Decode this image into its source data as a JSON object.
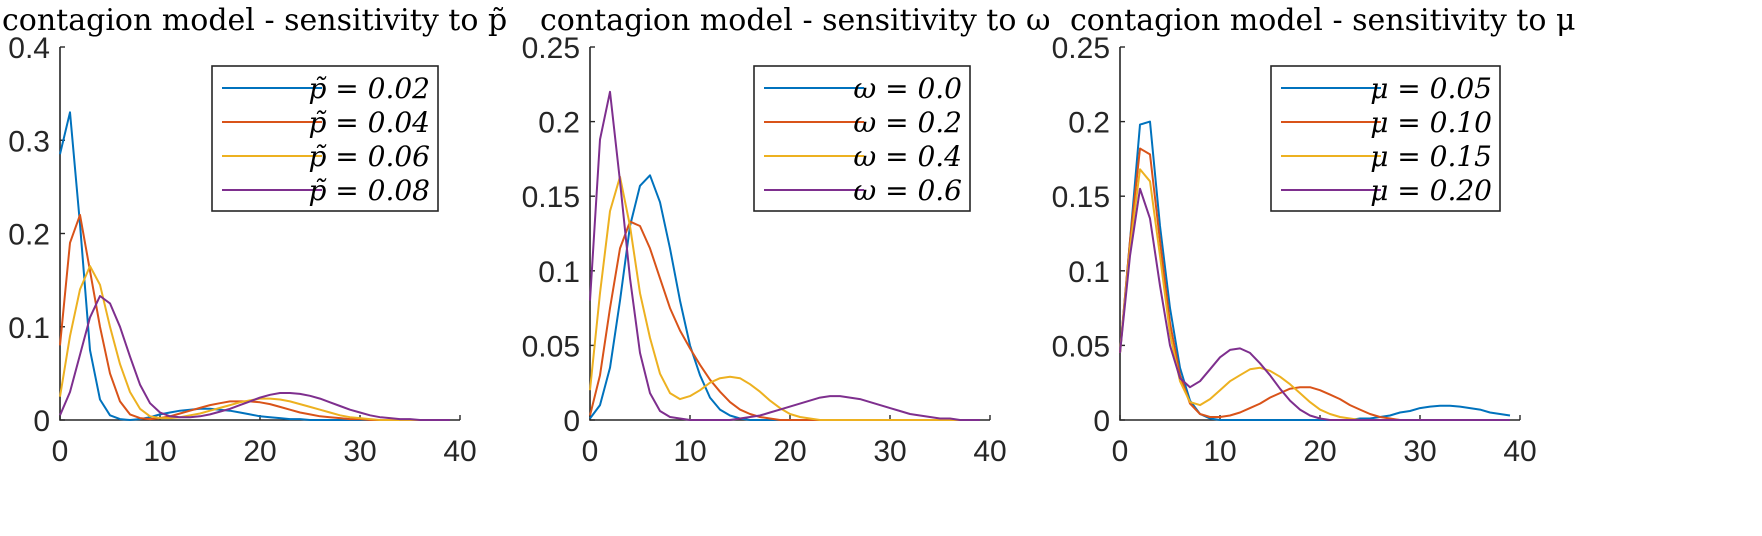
{
  "colors": {
    "blue": "#0072BD",
    "orange": "#D95319",
    "yellow": "#EDB120",
    "purple": "#7E2F8E"
  },
  "chart_data": [
    {
      "type": "line",
      "title": "contagion model - sensitivity to p̃",
      "xlim": [
        0,
        40
      ],
      "ylim": [
        0,
        0.4
      ],
      "xticks": [
        0,
        10,
        20,
        30,
        40
      ],
      "yticks": [
        0,
        0.1,
        0.2,
        0.3,
        0.4
      ],
      "xtick_labels": [
        "0",
        "10",
        "20",
        "30",
        "40"
      ],
      "ytick_labels": [
        "0",
        "0.1",
        "0.2",
        "0.3",
        "0.4"
      ],
      "legend": "top-right",
      "series": [
        {
          "name": "p̃ = 0.02",
          "color": "#0072BD",
          "x": [
            0,
            1,
            2,
            3,
            4,
            5,
            6,
            7,
            8,
            9,
            10,
            11,
            12,
            13,
            14,
            15,
            16,
            17,
            18,
            19,
            20,
            21,
            22,
            23,
            24,
            25,
            26,
            27,
            28,
            29,
            30,
            31,
            32,
            33,
            34,
            35,
            36,
            37,
            38,
            39
          ],
          "y": [
            0.285,
            0.33,
            0.21,
            0.075,
            0.022,
            0.005,
            0.001,
            0,
            0.001,
            0.003,
            0.006,
            0.008,
            0.01,
            0.011,
            0.012,
            0.012,
            0.011,
            0.01,
            0.008,
            0.006,
            0.004,
            0.003,
            0.002,
            0.001,
            0.001,
            0,
            0,
            0,
            0,
            0,
            0,
            0,
            0,
            0,
            0,
            0,
            0,
            0,
            0,
            0
          ]
        },
        {
          "name": "p̃ = 0.04",
          "color": "#D95319",
          "x": [
            0,
            1,
            2,
            3,
            4,
            5,
            6,
            7,
            8,
            9,
            10,
            11,
            12,
            13,
            14,
            15,
            16,
            17,
            18,
            19,
            20,
            21,
            22,
            23,
            24,
            25,
            26,
            27,
            28,
            29,
            30,
            31,
            32,
            33,
            34,
            35,
            36,
            37,
            38,
            39
          ],
          "y": [
            0.08,
            0.19,
            0.22,
            0.16,
            0.1,
            0.05,
            0.02,
            0.006,
            0.002,
            0.001,
            0.002,
            0.004,
            0.007,
            0.01,
            0.013,
            0.016,
            0.018,
            0.02,
            0.02,
            0.02,
            0.019,
            0.017,
            0.014,
            0.011,
            0.008,
            0.006,
            0.004,
            0.003,
            0.002,
            0.001,
            0.001,
            0,
            0,
            0,
            0,
            0,
            0,
            0,
            0,
            0
          ]
        },
        {
          "name": "p̃ = 0.06",
          "color": "#EDB120",
          "x": [
            0,
            1,
            2,
            3,
            4,
            5,
            6,
            7,
            8,
            9,
            10,
            11,
            12,
            13,
            14,
            15,
            16,
            17,
            18,
            19,
            20,
            21,
            22,
            23,
            24,
            25,
            26,
            27,
            28,
            29,
            30,
            31,
            32,
            33,
            34,
            35,
            36,
            37,
            38,
            39
          ],
          "y": [
            0.025,
            0.09,
            0.14,
            0.165,
            0.145,
            0.1,
            0.06,
            0.03,
            0.012,
            0.004,
            0.002,
            0.002,
            0.003,
            0.005,
            0.007,
            0.01,
            0.013,
            0.016,
            0.019,
            0.021,
            0.023,
            0.023,
            0.022,
            0.02,
            0.017,
            0.014,
            0.011,
            0.008,
            0.005,
            0.003,
            0.002,
            0.001,
            0,
            0,
            0,
            0,
            0,
            0,
            0,
            0
          ]
        },
        {
          "name": "p̃ = 0.08",
          "color": "#7E2F8E",
          "x": [
            0,
            1,
            2,
            3,
            4,
            5,
            6,
            7,
            8,
            9,
            10,
            11,
            12,
            13,
            14,
            15,
            16,
            17,
            18,
            19,
            20,
            21,
            22,
            23,
            24,
            25,
            26,
            27,
            28,
            29,
            30,
            31,
            32,
            33,
            34,
            35,
            36,
            37,
            38,
            39
          ],
          "y": [
            0.005,
            0.03,
            0.07,
            0.11,
            0.133,
            0.125,
            0.1,
            0.068,
            0.038,
            0.018,
            0.008,
            0.004,
            0.003,
            0.003,
            0.004,
            0.006,
            0.009,
            0.012,
            0.016,
            0.02,
            0.024,
            0.027,
            0.029,
            0.029,
            0.028,
            0.026,
            0.023,
            0.019,
            0.015,
            0.011,
            0.008,
            0.005,
            0.003,
            0.002,
            0.001,
            0.001,
            0,
            0,
            0,
            0
          ]
        }
      ]
    },
    {
      "type": "line",
      "title": "contagion model - sensitivity to ω",
      "xlim": [
        0,
        40
      ],
      "ylim": [
        0,
        0.25
      ],
      "xticks": [
        0,
        10,
        20,
        30,
        40
      ],
      "yticks": [
        0,
        0.05,
        0.1,
        0.15,
        0.2,
        0.25
      ],
      "xtick_labels": [
        "0",
        "10",
        "20",
        "30",
        "40"
      ],
      "ytick_labels": [
        "0",
        "0.05",
        "0.1",
        "0.15",
        "0.2",
        "0.25"
      ],
      "legend": "top-right",
      "series": [
        {
          "name": "ω = 0.0",
          "color": "#0072BD",
          "x": [
            0,
            1,
            2,
            3,
            4,
            5,
            6,
            7,
            8,
            9,
            10,
            11,
            12,
            13,
            14,
            15,
            16,
            17,
            18,
            19,
            20,
            21,
            22,
            23,
            24,
            25,
            26,
            27,
            28,
            29,
            30,
            31,
            32,
            33,
            34,
            35,
            36,
            37,
            38,
            39
          ],
          "y": [
            0.001,
            0.01,
            0.035,
            0.08,
            0.13,
            0.157,
            0.164,
            0.146,
            0.115,
            0.08,
            0.05,
            0.03,
            0.015,
            0.007,
            0.003,
            0.001,
            0,
            0,
            0,
            0,
            0,
            0,
            0,
            0,
            0,
            0,
            0,
            0,
            0,
            0,
            0,
            0,
            0,
            0,
            0,
            0,
            0,
            0,
            0,
            0
          ]
        },
        {
          "name": "ω = 0.2",
          "color": "#D95319",
          "x": [
            0,
            1,
            2,
            3,
            4,
            5,
            6,
            7,
            8,
            9,
            10,
            11,
            12,
            13,
            14,
            15,
            16,
            17,
            18,
            19,
            20,
            21,
            22,
            23,
            24,
            25,
            26,
            27,
            28,
            29,
            30,
            31,
            32,
            33,
            34,
            35,
            36,
            37,
            38,
            39
          ],
          "y": [
            0.003,
            0.03,
            0.075,
            0.115,
            0.133,
            0.13,
            0.115,
            0.095,
            0.075,
            0.06,
            0.048,
            0.037,
            0.027,
            0.019,
            0.012,
            0.007,
            0.004,
            0.002,
            0.001,
            0,
            0,
            0,
            0,
            0,
            0,
            0,
            0,
            0,
            0,
            0,
            0,
            0,
            0,
            0,
            0,
            0,
            0,
            0,
            0,
            0
          ]
        },
        {
          "name": "ω = 0.4",
          "color": "#EDB120",
          "x": [
            0,
            1,
            2,
            3,
            4,
            5,
            6,
            7,
            8,
            9,
            10,
            11,
            12,
            13,
            14,
            15,
            16,
            17,
            18,
            19,
            20,
            21,
            22,
            23,
            24,
            25,
            26,
            27,
            28,
            29,
            30,
            31,
            32,
            33,
            34,
            35,
            36,
            37,
            38,
            39
          ],
          "y": [
            0.02,
            0.085,
            0.14,
            0.163,
            0.13,
            0.085,
            0.055,
            0.031,
            0.018,
            0.014,
            0.016,
            0.02,
            0.025,
            0.028,
            0.029,
            0.028,
            0.024,
            0.019,
            0.013,
            0.008,
            0.004,
            0.002,
            0.001,
            0,
            0,
            0,
            0,
            0,
            0,
            0,
            0,
            0,
            0,
            0,
            0,
            0,
            0,
            0,
            0,
            0
          ]
        },
        {
          "name": "ω = 0.6",
          "color": "#7E2F8E",
          "x": [
            0,
            1,
            2,
            3,
            4,
            5,
            6,
            7,
            8,
            9,
            10,
            11,
            12,
            13,
            14,
            15,
            16,
            17,
            18,
            19,
            20,
            21,
            22,
            23,
            24,
            25,
            26,
            27,
            28,
            29,
            30,
            31,
            32,
            33,
            34,
            35,
            36,
            37,
            38,
            39
          ],
          "y": [
            0.08,
            0.188,
            0.22,
            0.16,
            0.095,
            0.045,
            0.018,
            0.006,
            0.002,
            0.001,
            0,
            0,
            0,
            0,
            0,
            0.001,
            0.002,
            0.003,
            0.005,
            0.007,
            0.009,
            0.011,
            0.013,
            0.015,
            0.016,
            0.016,
            0.015,
            0.014,
            0.012,
            0.01,
            0.008,
            0.006,
            0.004,
            0.003,
            0.002,
            0.001,
            0.001,
            0,
            0,
            0
          ]
        }
      ]
    },
    {
      "type": "line",
      "title": "contagion model - sensitivity to μ",
      "xlim": [
        0,
        40
      ],
      "ylim": [
        0,
        0.25
      ],
      "xticks": [
        0,
        10,
        20,
        30,
        40
      ],
      "yticks": [
        0,
        0.05,
        0.1,
        0.15,
        0.2,
        0.25
      ],
      "xtick_labels": [
        "0",
        "10",
        "20",
        "30",
        "40"
      ],
      "ytick_labels": [
        "0",
        "0.05",
        "0.1",
        "0.15",
        "0.2",
        "0.25"
      ],
      "legend": "top-right",
      "series": [
        {
          "name": "μ = 0.05",
          "color": "#0072BD",
          "x": [
            0,
            1,
            2,
            3,
            4,
            5,
            6,
            7,
            8,
            9,
            10,
            11,
            12,
            13,
            14,
            15,
            16,
            17,
            18,
            19,
            20,
            21,
            22,
            23,
            24,
            25,
            26,
            27,
            28,
            29,
            30,
            31,
            32,
            33,
            34,
            35,
            36,
            37,
            38,
            39
          ],
          "y": [
            0.045,
            0.12,
            0.198,
            0.2,
            0.13,
            0.075,
            0.035,
            0.013,
            0.004,
            0.001,
            0,
            0,
            0,
            0,
            0,
            0,
            0,
            0,
            0,
            0,
            0,
            0,
            0,
            0,
            0.001,
            0.001,
            0.002,
            0.003,
            0.005,
            0.006,
            0.008,
            0.009,
            0.0095,
            0.0095,
            0.009,
            0.008,
            0.007,
            0.005,
            0.004,
            0.003
          ]
        },
        {
          "name": "μ = 0.10",
          "color": "#D95319",
          "x": [
            0,
            1,
            2,
            3,
            4,
            5,
            6,
            7,
            8,
            9,
            10,
            11,
            12,
            13,
            14,
            15,
            16,
            17,
            18,
            19,
            20,
            21,
            22,
            23,
            24,
            25,
            26,
            27,
            28,
            29,
            30,
            31,
            32,
            33,
            34,
            35,
            36,
            37,
            38,
            39
          ],
          "y": [
            0.045,
            0.12,
            0.182,
            0.178,
            0.12,
            0.065,
            0.03,
            0.011,
            0.004,
            0.002,
            0.002,
            0.003,
            0.005,
            0.008,
            0.011,
            0.015,
            0.018,
            0.021,
            0.022,
            0.022,
            0.02,
            0.017,
            0.014,
            0.01,
            0.007,
            0.004,
            0.002,
            0.001,
            0,
            0,
            0,
            0,
            0,
            0,
            0,
            0,
            0,
            0,
            0,
            0
          ]
        },
        {
          "name": "μ = 0.15",
          "color": "#EDB120",
          "x": [
            0,
            1,
            2,
            3,
            4,
            5,
            6,
            7,
            8,
            9,
            10,
            11,
            12,
            13,
            14,
            15,
            16,
            17,
            18,
            19,
            20,
            21,
            22,
            23,
            24,
            25,
            26,
            27,
            28,
            29,
            30,
            31,
            32,
            33,
            34,
            35,
            36,
            37,
            38,
            39
          ],
          "y": [
            0.045,
            0.115,
            0.168,
            0.16,
            0.11,
            0.058,
            0.026,
            0.012,
            0.01,
            0.014,
            0.02,
            0.026,
            0.03,
            0.034,
            0.035,
            0.033,
            0.029,
            0.024,
            0.018,
            0.012,
            0.007,
            0.004,
            0.002,
            0.001,
            0,
            0,
            0,
            0,
            0,
            0,
            0,
            0,
            0,
            0,
            0,
            0,
            0,
            0,
            0,
            0
          ]
        },
        {
          "name": "μ = 0.20",
          "color": "#7E2F8E",
          "x": [
            0,
            1,
            2,
            3,
            4,
            5,
            6,
            7,
            8,
            9,
            10,
            11,
            12,
            13,
            14,
            15,
            16,
            17,
            18,
            19,
            20,
            21,
            22,
            23,
            24,
            25,
            26,
            27,
            28,
            29,
            30,
            31,
            32,
            33,
            34,
            35,
            36,
            37,
            38,
            39
          ],
          "y": [
            0.045,
            0.11,
            0.155,
            0.135,
            0.09,
            0.05,
            0.028,
            0.022,
            0.026,
            0.034,
            0.042,
            0.047,
            0.048,
            0.045,
            0.038,
            0.03,
            0.021,
            0.013,
            0.007,
            0.003,
            0.001,
            0,
            0,
            0,
            0,
            0,
            0,
            0,
            0,
            0,
            0,
            0,
            0,
            0,
            0,
            0,
            0,
            0,
            0,
            0
          ]
        }
      ]
    }
  ]
}
